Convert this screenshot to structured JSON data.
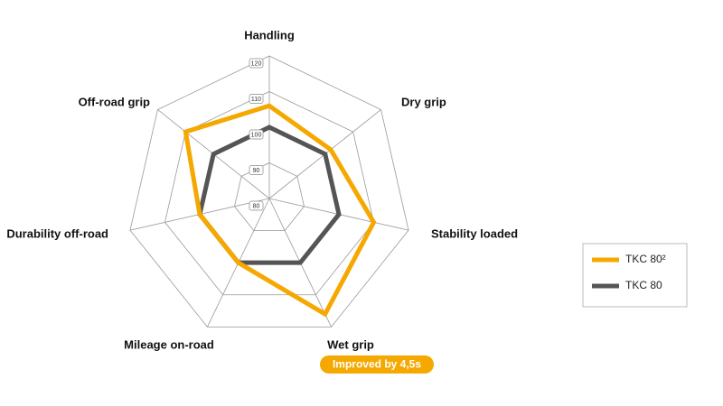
{
  "chart_data": {
    "type": "radar",
    "categories": [
      "Handling",
      "Dry grip",
      "Stability loaded",
      "Wet grip",
      "Mileage on-road",
      "Durability off-road",
      "Off-road grip"
    ],
    "rlim": [
      80,
      120
    ],
    "rticks": [
      80,
      90,
      100,
      110,
      120
    ],
    "grid": true,
    "legend": "right",
    "series": [
      {
        "name": "TKC 80²",
        "color": "#f5a800",
        "values": [
          106,
          102,
          110,
          116,
          100,
          100,
          110
        ]
      },
      {
        "name": "TKC 80",
        "color": "#555555",
        "values": [
          100,
          100,
          100,
          100,
          100,
          100,
          100
        ]
      }
    ],
    "annotation": "Improved by 4,5s"
  }
}
